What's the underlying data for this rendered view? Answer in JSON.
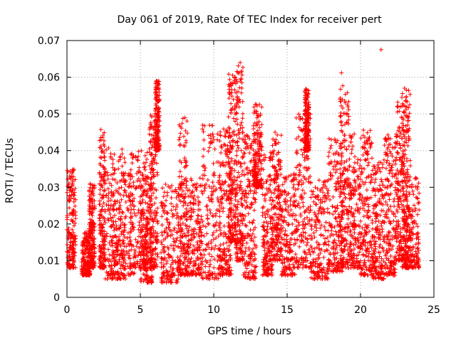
{
  "chart_data": {
    "type": "scatter",
    "title": "Day 061 of 2019, Rate Of TEC Index for receiver pert",
    "xlabel": "GPS time / hours",
    "ylabel": "ROTI / TECUs",
    "xlim": [
      0,
      25
    ],
    "ylim": [
      0,
      0.07
    ],
    "x_ticks": [
      0,
      5,
      10,
      15,
      20,
      25
    ],
    "x_tick_labels": [
      "0",
      "5",
      "10",
      "15",
      "20",
      "25"
    ],
    "y_ticks": [
      0,
      0.01,
      0.02,
      0.03,
      0.04,
      0.05,
      0.06,
      0.07
    ],
    "y_tick_labels": [
      "0",
      "0.01",
      "0.02",
      "0.03",
      "0.04",
      "0.05",
      "0.06",
      "0.07"
    ],
    "grid": true,
    "marker": "+",
    "series": [
      {
        "name": "ROTI",
        "color": "#ff0000",
        "clusters": [
          {
            "x": [
              0.0,
              0.6
            ],
            "y": [
              0.008,
              0.035
            ]
          },
          {
            "x": [
              1.0,
              1.6
            ],
            "y": [
              0.006,
              0.018
            ]
          },
          {
            "x": [
              1.5,
              1.9
            ],
            "y": [
              0.008,
              0.032
            ]
          },
          {
            "x": [
              2.2,
              2.6
            ],
            "y": [
              0.008,
              0.046
            ]
          },
          {
            "x": [
              2.6,
              4.0
            ],
            "y": [
              0.005,
              0.041
            ]
          },
          {
            "x": [
              3.0,
              4.6
            ],
            "y": [
              0.006,
              0.034
            ]
          },
          {
            "x": [
              4.2,
              5.5
            ],
            "y": [
              0.008,
              0.04
            ]
          },
          {
            "x": [
              5.0,
              5.8
            ],
            "y": [
              0.004,
              0.034
            ]
          },
          {
            "x": [
              5.6,
              6.2
            ],
            "y": [
              0.008,
              0.05
            ]
          },
          {
            "x": [
              6.0,
              6.3
            ],
            "y": [
              0.04,
              0.059
            ]
          },
          {
            "x": [
              6.4,
              7.6
            ],
            "y": [
              0.004,
              0.031
            ]
          },
          {
            "x": [
              7.6,
              8.2
            ],
            "y": [
              0.006,
              0.049
            ]
          },
          {
            "x": [
              8.2,
              9.2
            ],
            "y": [
              0.006,
              0.033
            ]
          },
          {
            "x": [
              9.2,
              10.5
            ],
            "y": [
              0.005,
              0.047
            ]
          },
          {
            "x": [
              10.4,
              11.2
            ],
            "y": [
              0.006,
              0.046
            ]
          },
          {
            "x": [
              11.0,
              11.5
            ],
            "y": [
              0.015,
              0.061
            ]
          },
          {
            "x": [
              11.5,
              12.0
            ],
            "y": [
              0.01,
              0.064
            ]
          },
          {
            "x": [
              12.0,
              12.9
            ],
            "y": [
              0.005,
              0.045
            ]
          },
          {
            "x": [
              12.7,
              13.3
            ],
            "y": [
              0.03,
              0.053
            ]
          },
          {
            "x": [
              13.3,
              14.0
            ],
            "y": [
              0.006,
              0.04
            ]
          },
          {
            "x": [
              14.0,
              14.6
            ],
            "y": [
              0.01,
              0.045
            ]
          },
          {
            "x": [
              14.6,
              15.6
            ],
            "y": [
              0.006,
              0.034
            ]
          },
          {
            "x": [
              15.6,
              16.6
            ],
            "y": [
              0.008,
              0.05
            ]
          },
          {
            "x": [
              16.2,
              16.5
            ],
            "y": [
              0.04,
              0.057
            ]
          },
          {
            "x": [
              16.6,
              17.8
            ],
            "y": [
              0.005,
              0.032
            ]
          },
          {
            "x": [
              17.8,
              18.8
            ],
            "y": [
              0.007,
              0.044
            ]
          },
          {
            "x": [
              18.6,
              19.2
            ],
            "y": [
              0.008,
              0.061
            ]
          },
          {
            "x": [
              19.2,
              20.0
            ],
            "y": [
              0.008,
              0.045
            ]
          },
          {
            "x": [
              20.0,
              20.8
            ],
            "y": [
              0.006,
              0.046
            ]
          },
          {
            "x": [
              20.8,
              21.6
            ],
            "y": [
              0.005,
              0.038
            ]
          },
          {
            "x": [
              21.6,
              22.4
            ],
            "y": [
              0.006,
              0.045
            ]
          },
          {
            "x": [
              22.4,
              23.0
            ],
            "y": [
              0.01,
              0.055
            ]
          },
          {
            "x": [
              22.8,
              23.4
            ],
            "y": [
              0.008,
              0.057
            ]
          },
          {
            "x": [
              23.0,
              24.0
            ],
            "y": [
              0.008,
              0.033
            ]
          }
        ],
        "notable_points": [
          {
            "x": 11.8,
            "y": 0.064
          },
          {
            "x": 21.4,
            "y": 0.0675
          },
          {
            "x": 18.7,
            "y": 0.0612
          },
          {
            "x": 6.1,
            "y": 0.059
          },
          {
            "x": 23.0,
            "y": 0.057
          },
          {
            "x": 16.3,
            "y": 0.0565
          }
        ]
      }
    ]
  }
}
